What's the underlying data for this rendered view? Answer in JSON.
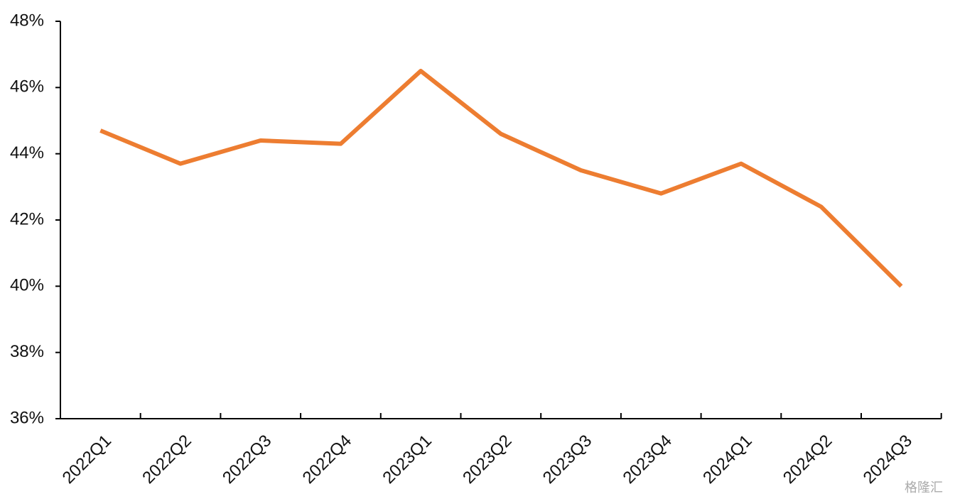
{
  "chart_data": {
    "type": "line",
    "categories": [
      "2022Q1",
      "2022Q2",
      "2022Q3",
      "2022Q4",
      "2023Q1",
      "2023Q2",
      "2023Q3",
      "2023Q4",
      "2024Q1",
      "2024Q2",
      "2024Q3"
    ],
    "series": [
      {
        "color": "#ed7d31",
        "values": [
          44.7,
          43.7,
          44.4,
          44.3,
          46.5,
          44.6,
          43.5,
          42.8,
          43.7,
          42.4,
          40.0
        ]
      }
    ],
    "ylim": [
      36,
      48
    ],
    "yticks": [
      {
        "value": 36,
        "label": "36%"
      },
      {
        "value": 38,
        "label": "38%"
      },
      {
        "value": 40,
        "label": "40%"
      },
      {
        "value": 42,
        "label": "42%"
      },
      {
        "value": 44,
        "label": "44%"
      },
      {
        "value": 46,
        "label": "46%"
      },
      {
        "value": 48,
        "label": "48%"
      }
    ],
    "grid": false
  },
  "watermark": "格隆汇"
}
